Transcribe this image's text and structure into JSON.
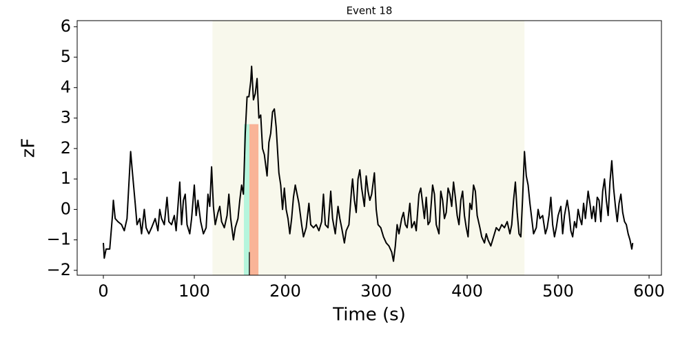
{
  "chart_data": {
    "type": "line",
    "title": "Event 18",
    "x_label": "Time (s)",
    "y_label": "zF",
    "color": "#000000",
    "x": [
      0,
      1,
      3,
      7,
      10,
      11,
      13,
      16,
      20,
      23,
      26,
      28,
      30,
      32,
      35,
      37,
      40,
      42,
      45,
      47,
      50,
      53,
      57,
      60,
      62,
      64,
      67,
      70,
      72,
      75,
      78,
      80,
      82,
      84,
      86,
      88,
      90,
      92,
      95,
      97,
      100,
      102,
      104,
      107,
      110,
      113,
      115,
      117,
      119,
      121,
      123,
      126,
      128,
      130,
      133,
      136,
      138,
      140,
      143,
      145,
      148,
      150,
      152,
      154,
      156,
      158,
      160,
      162,
      163,
      165,
      167,
      169,
      171,
      173,
      175,
      177,
      180,
      182,
      184,
      186,
      188,
      190,
      193,
      195,
      197,
      199,
      201,
      203,
      205,
      207,
      209,
      211,
      213,
      215,
      218,
      220,
      223,
      226,
      228,
      231,
      234,
      237,
      240,
      242,
      244,
      247,
      250,
      252,
      255,
      258,
      260,
      262,
      265,
      267,
      270,
      273,
      274,
      276,
      278,
      280,
      282,
      284,
      287,
      289,
      291,
      293,
      295,
      298,
      300,
      302,
      305,
      308,
      311,
      314,
      317,
      319,
      321,
      323,
      325,
      328,
      330,
      332,
      334,
      337,
      339,
      342,
      344,
      347,
      349,
      351,
      353,
      355,
      357,
      359,
      362,
      364,
      366,
      369,
      371,
      373,
      375,
      377,
      379,
      381,
      383,
      385,
      387,
      389,
      391,
      393,
      395,
      397,
      399,
      401,
      403,
      405,
      407,
      409,
      411,
      414,
      416,
      419,
      421,
      423,
      426,
      429,
      432,
      435,
      438,
      441,
      444,
      447,
      449,
      451,
      453,
      455,
      457,
      459,
      461,
      463,
      465,
      467,
      469,
      471,
      473,
      476,
      478,
      480,
      483,
      486,
      488,
      490,
      492,
      494,
      496,
      498,
      500,
      503,
      505,
      507,
      510,
      512,
      514,
      516,
      518,
      520,
      522,
      524,
      526,
      528,
      530,
      533,
      535,
      537,
      539,
      541,
      543,
      545,
      547,
      549,
      551,
      553,
      555,
      557,
      559,
      561,
      563,
      565,
      567,
      569,
      571,
      573,
      575,
      577,
      579,
      581,
      582
    ],
    "values": [
      -1.1,
      -1.6,
      -1.3,
      -1.3,
      -0.2,
      0.3,
      -0.3,
      -0.4,
      -0.5,
      -0.7,
      -0.3,
      0.8,
      1.9,
      1.2,
      0.2,
      -0.5,
      -0.3,
      -0.8,
      0.0,
      -0.6,
      -0.8,
      -0.6,
      -0.3,
      -0.7,
      0.0,
      -0.3,
      -0.5,
      0.4,
      -0.4,
      -0.5,
      -0.2,
      -0.7,
      0.1,
      0.9,
      -0.5,
      0.3,
      0.5,
      -0.5,
      -0.8,
      -0.3,
      0.8,
      -0.2,
      0.3,
      -0.4,
      -0.8,
      -0.6,
      0.5,
      0.1,
      1.4,
      0.1,
      -0.5,
      -0.1,
      0.1,
      -0.4,
      -0.6,
      -0.2,
      0.5,
      -0.3,
      -1.0,
      -0.6,
      -0.3,
      0.3,
      0.8,
      0.5,
      2.5,
      3.7,
      3.7,
      4.2,
      4.7,
      3.6,
      3.8,
      4.3,
      3.0,
      3.1,
      2.0,
      1.8,
      1.1,
      2.2,
      2.5,
      3.2,
      3.3,
      2.7,
      1.2,
      0.8,
      0.0,
      0.7,
      0.0,
      -0.3,
      -0.8,
      -0.3,
      0.4,
      0.8,
      0.5,
      0.2,
      -0.5,
      -0.9,
      -0.6,
      0.2,
      -0.5,
      -0.6,
      -0.5,
      -0.7,
      -0.4,
      0.5,
      -0.5,
      -0.6,
      0.6,
      -0.3,
      -0.8,
      0.1,
      -0.3,
      -0.6,
      -1.1,
      -0.7,
      -0.5,
      0.7,
      1.0,
      0.3,
      -0.1,
      1.0,
      1.3,
      0.7,
      0.1,
      1.1,
      0.6,
      0.3,
      0.5,
      1.2,
      0.0,
      -0.5,
      -0.6,
      -0.9,
      -1.1,
      -1.2,
      -1.4,
      -1.7,
      -1.2,
      -0.5,
      -0.8,
      -0.3,
      -0.1,
      -0.5,
      -0.6,
      0.2,
      -0.6,
      -0.4,
      -0.7,
      0.5,
      0.7,
      0.2,
      -0.3,
      0.4,
      -0.5,
      -0.4,
      0.8,
      0.5,
      -0.5,
      -0.8,
      0.6,
      0.3,
      -0.3,
      -0.1,
      0.7,
      0.5,
      0.1,
      0.9,
      0.4,
      -0.2,
      -0.5,
      0.3,
      0.6,
      -0.2,
      -0.6,
      -0.9,
      0.2,
      0.0,
      0.8,
      0.6,
      -0.2,
      -0.6,
      -0.9,
      -1.1,
      -0.8,
      -1.0,
      -1.2,
      -0.9,
      -0.6,
      -0.7,
      -0.5,
      -0.6,
      -0.4,
      -0.8,
      -0.5,
      0.3,
      0.9,
      -0.1,
      -0.8,
      -0.9,
      0.4,
      1.9,
      1.1,
      0.8,
      0.2,
      -0.3,
      -0.8,
      -0.6,
      0.0,
      -0.3,
      -0.2,
      -0.8,
      -0.6,
      -0.2,
      0.4,
      -0.5,
      -0.9,
      -0.6,
      -0.2,
      0.1,
      -0.8,
      -0.2,
      0.3,
      -0.1,
      -0.7,
      -0.9,
      -0.4,
      -0.6,
      0.0,
      -0.3,
      -0.5,
      0.2,
      -0.3,
      0.6,
      0.2,
      -0.3,
      0.1,
      -0.4,
      0.4,
      0.3,
      -0.4,
      0.6,
      1.0,
      0.3,
      -0.2,
      0.9,
      1.6,
      0.7,
      0.1,
      -0.4,
      0.2,
      0.5,
      -0.1,
      -0.4,
      -0.5,
      -0.8,
      -1.0,
      -1.3,
      -1.1
    ],
    "spans": [
      {
        "x0": 120,
        "x1": 463,
        "color": "#f8f8ec"
      },
      {
        "x0": 154.5,
        "x1": 162,
        "y1": 2.8,
        "color": "#b5f5dc"
      },
      {
        "x0": 160.6,
        "x1": 170.5,
        "y1": 2.8,
        "color": "#f9b497"
      }
    ],
    "markers": [
      {
        "x": 160.5,
        "y1": -1.4,
        "color": "#222222"
      }
    ],
    "xlim": [
      -28.8,
      613.6
    ],
    "ylim": [
      -2.16,
      6.2
    ],
    "xticks": [
      0,
      100,
      200,
      300,
      400,
      500,
      600
    ],
    "yticks": [
      {
        "value": -2,
        "label": "−2"
      },
      {
        "value": -1,
        "label": "−1"
      },
      0,
      1,
      2,
      3,
      4,
      5,
      6
    ]
  }
}
